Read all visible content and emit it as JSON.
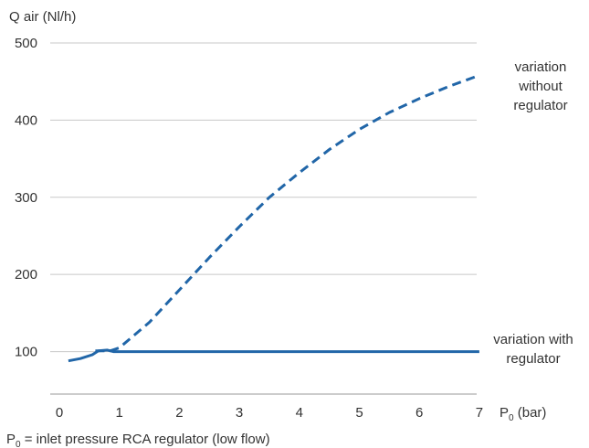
{
  "chart_data": {
    "type": "line",
    "title": "",
    "ylabel": "Q air (Nl/h)",
    "xlabel": {
      "main": "P",
      "sub": "0",
      "unit": " (bar)"
    },
    "caption": {
      "main": "P",
      "sub": "0",
      "rest": " = inlet pressure RCA regulator (low flow)"
    },
    "xlim": [
      0,
      7
    ],
    "ylim": [
      45,
      500
    ],
    "xticks": [
      "0",
      "1",
      "2",
      "3",
      "4",
      "5",
      "6",
      "7"
    ],
    "yticks": [
      "100",
      "200",
      "300",
      "400",
      "500"
    ],
    "grid": "horizontal",
    "colors": {
      "line": "#2166a8",
      "grid": "#c8c8c8",
      "axis": "#9a9a9a",
      "text": "#333333"
    },
    "series": [
      {
        "name": "variation without regulator",
        "label_lines": [
          "variation",
          "without",
          "regulator"
        ],
        "style": "dashed",
        "points": [
          [
            0.6,
            101
          ],
          [
            0.85,
            101
          ],
          [
            1.0,
            105
          ],
          [
            1.5,
            138
          ],
          [
            2,
            180
          ],
          [
            2.5,
            222
          ],
          [
            3,
            262
          ],
          [
            3.5,
            300
          ],
          [
            4,
            332
          ],
          [
            4.5,
            362
          ],
          [
            5,
            388
          ],
          [
            5.5,
            410
          ],
          [
            6,
            428
          ],
          [
            6.5,
            444
          ],
          [
            7,
            458
          ]
        ]
      },
      {
        "name": "variation with regulator",
        "label_lines": [
          "variation with",
          "regulator"
        ],
        "style": "solid",
        "points": [
          [
            0.15,
            88
          ],
          [
            0.35,
            91
          ],
          [
            0.55,
            96
          ],
          [
            0.65,
            101
          ],
          [
            0.8,
            102
          ],
          [
            0.9,
            100
          ],
          [
            7,
            100
          ]
        ]
      }
    ]
  }
}
